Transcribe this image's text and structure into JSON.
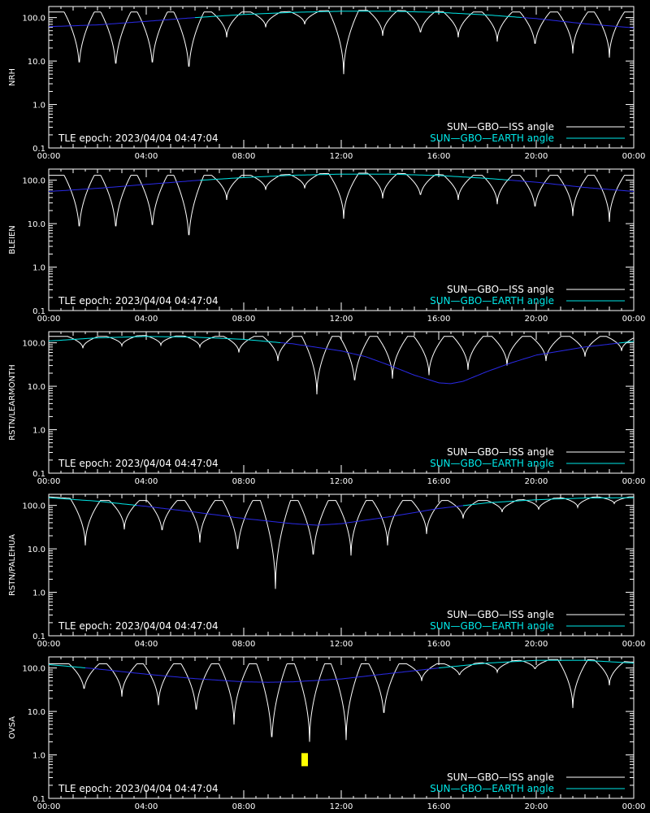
{
  "style": {
    "background": "#000000",
    "axis_color": "#ffffff",
    "iss_curve_color": "#ffffff",
    "earth_curve_color": "#00e8e8",
    "earth_low_color": "#2a2ae8",
    "marker_color": "#ffff00"
  },
  "common": {
    "epoch_label": "TLE epoch: 2023/04/04 04:47:04",
    "legend": [
      "SUN—GBO—ISS angle",
      "SUN—GBO—EARTH angle"
    ]
  },
  "chart_data": [
    {
      "type": "line",
      "ylabel": "NRH",
      "yscale": "log",
      "ylim": [
        0.1,
        180
      ],
      "xlim_hours": [
        0,
        24
      ],
      "x_ticks": [
        "00:00",
        "04:00",
        "08:00",
        "12:00",
        "16:00",
        "20:00",
        "00:00"
      ],
      "y_ticks": [
        "0.1",
        "1.0",
        "10.0",
        "100.0"
      ],
      "series": [
        {
          "name": "SUN—GBO—ISS angle",
          "dips_hour": [
            1.25,
            2.75,
            4.25,
            5.75,
            7.3,
            8.9,
            10.5,
            12.1,
            13.7,
            15.25,
            16.8,
            18.4,
            19.95,
            21.5,
            23.0
          ],
          "dips_min": [
            6.5,
            6.0,
            6.5,
            5.0,
            35,
            60,
            70,
            5.0,
            38,
            40,
            35,
            28,
            20,
            15,
            12
          ],
          "peak": 135
        },
        {
          "name": "SUN—GBO—EARTH angle",
          "hours": [
            0,
            2,
            4,
            6,
            8,
            10,
            12,
            14,
            16,
            18,
            20,
            22,
            24
          ],
          "values": [
            62,
            68,
            82,
            100,
            118,
            132,
            140,
            140,
            132,
            115,
            95,
            72,
            58
          ]
        }
      ]
    },
    {
      "type": "line",
      "ylabel": "BLEIEN",
      "yscale": "log",
      "ylim": [
        0.1,
        180
      ],
      "xlim_hours": [
        0,
        24
      ],
      "x_ticks": [
        "00:00",
        "04:00",
        "08:00",
        "12:00",
        "16:00",
        "20:00",
        "00:00"
      ],
      "y_ticks": [
        "0.1",
        "1.0",
        "10.0",
        "100.0"
      ],
      "series": [
        {
          "name": "SUN—GBO—ISS angle",
          "dips_hour": [
            1.25,
            2.75,
            4.25,
            5.75,
            7.3,
            8.9,
            10.5,
            12.1,
            13.7,
            15.25,
            16.8,
            18.4,
            19.95,
            21.5,
            23.0
          ],
          "dips_min": [
            6.0,
            6.0,
            6.5,
            3.5,
            35,
            60,
            65,
            13,
            38,
            40,
            35,
            28,
            20,
            15,
            11
          ],
          "peak": 130
        },
        {
          "name": "SUN—GBO—EARTH angle",
          "hours": [
            0,
            2,
            4,
            6,
            8,
            10,
            12,
            14,
            16,
            18,
            20,
            22,
            24
          ],
          "values": [
            55,
            65,
            80,
            98,
            115,
            130,
            138,
            138,
            128,
            110,
            90,
            68,
            55
          ]
        }
      ]
    },
    {
      "type": "line",
      "ylabel": "RSTN/LEARMONTH",
      "yscale": "log",
      "ylim": [
        0.1,
        180
      ],
      "xlim_hours": [
        0,
        24
      ],
      "x_ticks": [
        "00:00",
        "04:00",
        "08:00",
        "12:00",
        "16:00",
        "20:00",
        "00:00"
      ],
      "y_ticks": [
        "0.1",
        "1.0",
        "10.0",
        "100.0"
      ],
      "series": [
        {
          "name": "SUN—GBO—ISS angle",
          "dips_hour": [
            1.4,
            3.0,
            4.6,
            6.2,
            7.8,
            9.4,
            11.0,
            12.55,
            14.1,
            15.6,
            17.2,
            18.8,
            20.4,
            22.0,
            23.5
          ],
          "dips_min": [
            75,
            85,
            88,
            80,
            60,
            38,
            6.5,
            10,
            15,
            18,
            24,
            30,
            38,
            48,
            65
          ],
          "peak": 140
        },
        {
          "name": "SUN—GBO—EARTH angle",
          "hours": [
            0,
            2,
            4,
            6,
            8,
            10,
            12,
            13,
            14,
            15,
            16,
            16.5,
            17,
            18,
            19,
            20,
            22,
            24
          ],
          "values": [
            110,
            130,
            140,
            135,
            120,
            95,
            65,
            48,
            30,
            18,
            12,
            11.5,
            13,
            22,
            35,
            52,
            80,
            108
          ]
        }
      ]
    },
    {
      "type": "line",
      "ylabel": "RSTN/PALEHUA",
      "yscale": "log",
      "ylim": [
        0.1,
        180
      ],
      "xlim_hours": [
        0,
        24
      ],
      "x_ticks": [
        "00:00",
        "04:00",
        "08:00",
        "12:00",
        "16:00",
        "20:00",
        "00:00"
      ],
      "y_ticks": [
        "0.1",
        "1.0",
        "10.0",
        "100.0"
      ],
      "series": [
        {
          "name": "SUN—GBO—ISS angle",
          "dips_hour": [
            1.5,
            3.1,
            4.65,
            6.2,
            7.75,
            9.3,
            10.85,
            12.4,
            13.9,
            15.5,
            17.0,
            18.6,
            20.1,
            21.7,
            23.2
          ],
          "dips_min": [
            12,
            28,
            22,
            14,
            7.0,
            1.2,
            5.0,
            7.0,
            12,
            22,
            50,
            70,
            80,
            90,
            110
          ],
          "peak": 130
        },
        {
          "name": "SUN—GBO—EARTH angle",
          "hours": [
            0,
            2,
            4,
            6,
            8,
            10,
            11,
            12,
            14,
            16,
            18,
            20,
            22,
            24
          ],
          "values": [
            150,
            125,
            95,
            70,
            50,
            38,
            35,
            38,
            55,
            85,
            115,
            135,
            148,
            150
          ]
        }
      ]
    },
    {
      "type": "line",
      "ylabel": "OVSA",
      "yscale": "log",
      "ylim": [
        0.1,
        180
      ],
      "xlim_hours": [
        0,
        24
      ],
      "x_ticks": [
        "00:00",
        "04:00",
        "08:00",
        "12:00",
        "16:00",
        "20:00",
        "00:00"
      ],
      "y_ticks": [
        "0.1",
        "1.0",
        "10.0",
        "100.0"
      ],
      "marker": {
        "hour": 10.5,
        "value_low": 0.55,
        "value_high": 1.1
      },
      "series": [
        {
          "name": "SUN—GBO—ISS angle",
          "dips_hour": [
            1.45,
            3.0,
            4.5,
            6.05,
            7.6,
            9.15,
            10.7,
            12.2,
            13.75,
            15.3,
            16.85,
            18.4,
            19.95,
            21.5,
            23.0
          ],
          "dips_min": [
            28,
            22,
            14,
            8.0,
            5.0,
            1.5,
            2.0,
            2.2,
            6.5,
            50,
            65,
            80,
            90,
            12,
            40
          ],
          "peak": 125
        },
        {
          "name": "SUN—GBO—EARTH angle",
          "hours": [
            0,
            2,
            4,
            6,
            8,
            9,
            10,
            12,
            14,
            16,
            18,
            20,
            22,
            24
          ],
          "values": [
            120,
            95,
            72,
            57,
            48,
            47,
            48,
            56,
            75,
            100,
            130,
            150,
            150,
            130
          ]
        }
      ]
    }
  ]
}
